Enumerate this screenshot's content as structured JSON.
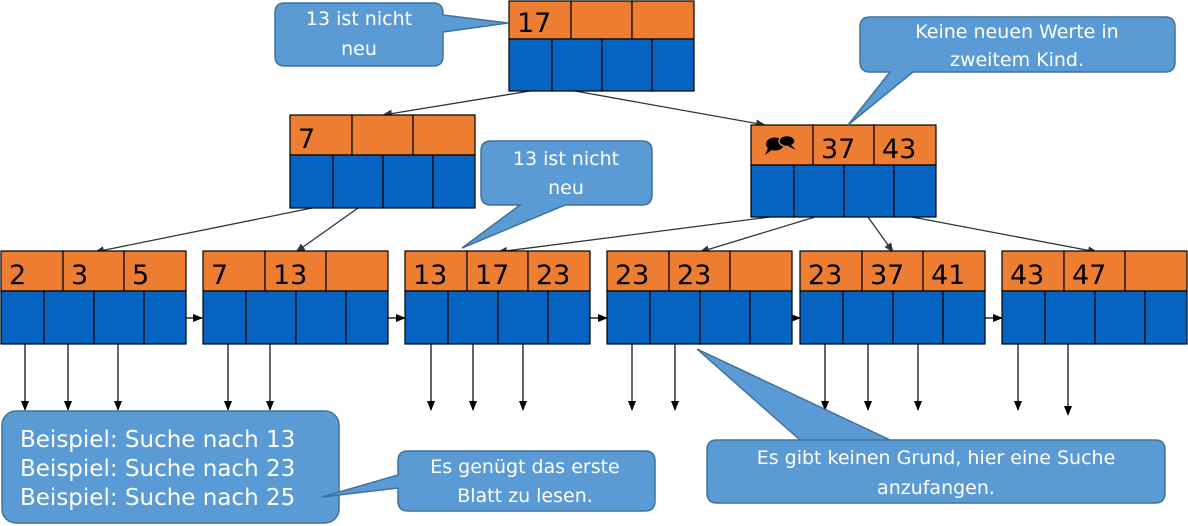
{
  "colors": {
    "key_fill": "#ED7D31",
    "pointer_fill": "#0563C1",
    "callout_fill": "#5B9BD5",
    "border": "#000000"
  },
  "root": {
    "keys": [
      "17",
      "",
      ""
    ]
  },
  "inner_left": {
    "keys": [
      "7",
      "",
      ""
    ]
  },
  "inner_right": {
    "keys": [
      "",
      "37",
      "43"
    ],
    "first_slot_icon": "comment-icon"
  },
  "leaves": [
    {
      "keys": [
        "2",
        "3",
        "5"
      ]
    },
    {
      "keys": [
        "7",
        "13",
        ""
      ]
    },
    {
      "keys": [
        "13",
        "17",
        "23"
      ]
    },
    {
      "keys": [
        "23",
        "23",
        ""
      ]
    },
    {
      "keys": [
        "23",
        "37",
        "41"
      ]
    },
    {
      "keys": [
        "43",
        "47",
        ""
      ]
    }
  ],
  "callouts": {
    "root": [
      "13 ist nicht",
      "neu"
    ],
    "right_inner": [
      "Keine neuen Werte in",
      "zweitem Kind."
    ],
    "middle": [
      "13 ist nicht",
      "neu"
    ],
    "first_leaf": [
      "Es genügt das erste",
      "Blatt zu lesen."
    ],
    "no_reason": [
      "Es gibt keinen Grund, hier eine Suche",
      "anzufangen."
    ]
  },
  "examples": [
    "Beispiel: Suche nach 13",
    "Beispiel: Suche nach 23",
    "Beispiel: Suche nach 25"
  ]
}
